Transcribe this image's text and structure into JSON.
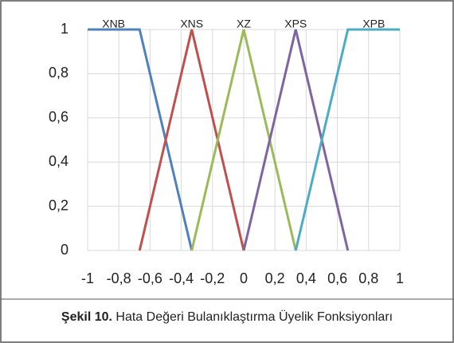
{
  "chart_data": {
    "type": "line",
    "series": [
      {
        "name": "XNB",
        "color": "#4f81bd",
        "x": [
          -1,
          -0.667,
          -0.333
        ],
        "values": [
          1,
          1,
          0
        ]
      },
      {
        "name": "XNS",
        "color": "#c0504d",
        "x": [
          -0.667,
          -0.333,
          0
        ],
        "values": [
          0,
          1,
          0
        ]
      },
      {
        "name": "XZ",
        "color": "#9bbb59",
        "x": [
          -0.333,
          0,
          0.333
        ],
        "values": [
          0,
          1,
          0
        ]
      },
      {
        "name": "XPS",
        "color": "#8064a2",
        "x": [
          0,
          0.333,
          0.667
        ],
        "values": [
          0,
          1,
          0
        ]
      },
      {
        "name": "XPB",
        "color": "#4bacc6",
        "x": [
          0.333,
          0.667,
          1
        ],
        "values": [
          0,
          1,
          1
        ]
      }
    ],
    "xlim": [
      -1,
      1
    ],
    "xticks": [
      -1,
      {
        "value": -0.8,
        "label": "-0,8"
      },
      {
        "value": -0.6,
        "label": "-0,6"
      },
      {
        "value": -0.4,
        "label": "-0,4"
      },
      {
        "value": -0.2,
        "label": "-0,2"
      },
      0,
      {
        "value": 0.2,
        "label": "0,2"
      },
      {
        "value": 0.4,
        "label": "0,4"
      },
      {
        "value": 0.6,
        "label": "0,6"
      },
      {
        "value": 0.8,
        "label": "0,8"
      },
      1
    ],
    "ylim": [
      0,
      1
    ],
    "yticks": [
      0,
      {
        "value": 0.2,
        "label": "0,2"
      },
      {
        "value": 0.4,
        "label": "0,4"
      },
      {
        "value": 0.6,
        "label": "0,6"
      },
      {
        "value": 0.8,
        "label": "0,8"
      },
      1
    ],
    "grid": true,
    "caption": {
      "label": "Şekil 10.",
      "text": "Hata Değeri Bulanıklaştırma Üyelik Fonksiyonları"
    }
  }
}
